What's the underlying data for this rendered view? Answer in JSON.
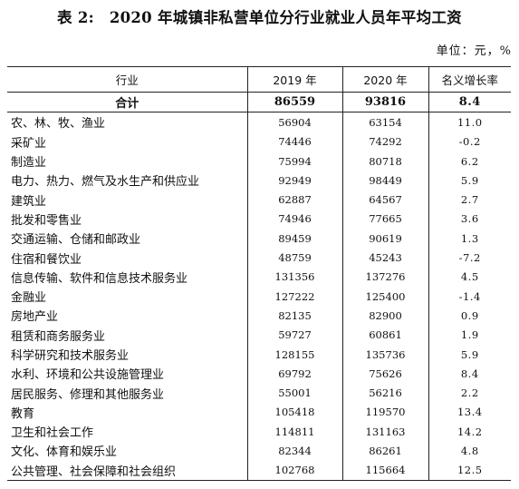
{
  "title": "表 2:　2020 年城镇非私营单位分行业就业人员年平均工资",
  "unit": "单位：元，%",
  "table": {
    "headers": [
      "行业",
      "2019 年",
      "2020 年",
      "名义增长率"
    ],
    "total": {
      "industry": "合计",
      "y2019": "86559",
      "y2020": "93816",
      "growth": "8.4"
    },
    "rows": [
      {
        "industry": "农、林、牧、渔业",
        "y2019": "56904",
        "y2020": "63154",
        "growth": "11.0"
      },
      {
        "industry": "采矿业",
        "y2019": "74446",
        "y2020": "74292",
        "growth": "-0.2"
      },
      {
        "industry": "制造业",
        "y2019": "75994",
        "y2020": "80718",
        "growth": "6.2"
      },
      {
        "industry": "电力、热力、燃气及水生产和供应业",
        "y2019": "92949",
        "y2020": "98449",
        "growth": "5.9"
      },
      {
        "industry": "建筑业",
        "y2019": "62887",
        "y2020": "64567",
        "growth": "2.7"
      },
      {
        "industry": "批发和零售业",
        "y2019": "74946",
        "y2020": "77665",
        "growth": "3.6"
      },
      {
        "industry": "交通运输、仓储和邮政业",
        "y2019": "89459",
        "y2020": "90619",
        "growth": "1.3"
      },
      {
        "industry": "住宿和餐饮业",
        "y2019": "48759",
        "y2020": "45243",
        "growth": "-7.2"
      },
      {
        "industry": "信息传输、软件和信息技术服务业",
        "y2019": "131356",
        "y2020": "137276",
        "growth": "4.5"
      },
      {
        "industry": "金融业",
        "y2019": "127222",
        "y2020": "125400",
        "growth": "-1.4"
      },
      {
        "industry": "房地产业",
        "y2019": "82135",
        "y2020": "82900",
        "growth": "0.9"
      },
      {
        "industry": "租赁和商务服务业",
        "y2019": "59727",
        "y2020": "60861",
        "growth": "1.9"
      },
      {
        "industry": "科学研究和技术服务业",
        "y2019": "128155",
        "y2020": "135736",
        "growth": "5.9"
      },
      {
        "industry": "水利、环境和公共设施管理业",
        "y2019": "69792",
        "y2020": "75626",
        "growth": "8.4"
      },
      {
        "industry": "居民服务、修理和其他服务业",
        "y2019": "55001",
        "y2020": "56216",
        "growth": "2.2"
      },
      {
        "industry": "教育",
        "y2019": "105418",
        "y2020": "119570",
        "growth": "13.4"
      },
      {
        "industry": "卫生和社会工作",
        "y2019": "114811",
        "y2020": "131163",
        "growth": "14.2"
      },
      {
        "industry": "文化、体育和娱乐业",
        "y2019": "82344",
        "y2020": "86261",
        "growth": "4.8"
      },
      {
        "industry": "公共管理、社会保障和社会组织",
        "y2019": "102768",
        "y2020": "115664",
        "growth": "12.5"
      }
    ]
  }
}
